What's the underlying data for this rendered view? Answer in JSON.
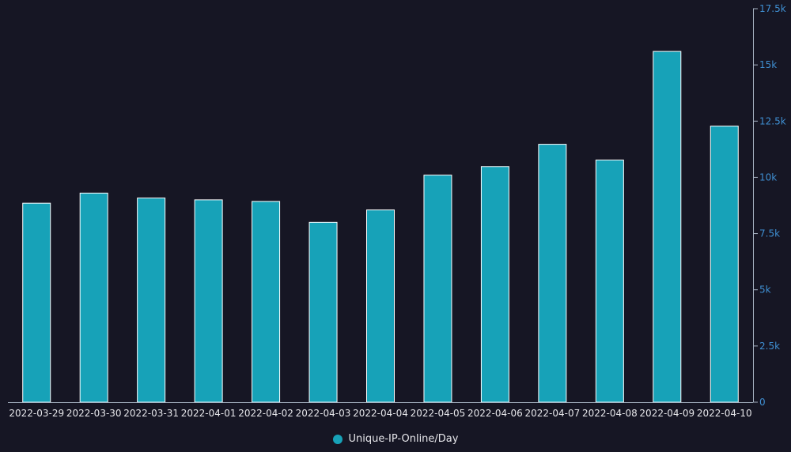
{
  "chart_data": {
    "type": "bar",
    "categories": [
      "2022-03-29",
      "2022-03-30",
      "2022-03-31",
      "2022-04-01",
      "2022-04-02",
      "2022-04-03",
      "2022-04-04",
      "2022-04-05",
      "2022-04-06",
      "2022-04-07",
      "2022-04-08",
      "2022-04-09",
      "2022-04-10"
    ],
    "series": [
      {
        "name": "Unique-IP-Online/Day",
        "values": [
          8850,
          9300,
          9080,
          9000,
          8930,
          8000,
          8550,
          10100,
          10480,
          11470,
          10770,
          15600,
          12280
        ],
        "color": "#17a2b8"
      }
    ],
    "ylim": [
      0,
      17500
    ],
    "yticks": [
      0,
      2500,
      5000,
      7500,
      10000,
      12500,
      15000,
      17500
    ],
    "ytick_labels": [
      "0",
      "2.5k",
      "5k",
      "7.5k",
      "10k",
      "12.5k",
      "15k",
      "17.5k"
    ],
    "y_axis_position": "right",
    "title": "",
    "xlabel": "",
    "ylabel": "",
    "grid": false,
    "legend_position": "bottom-center",
    "colors": {
      "background": "#161624",
      "axis_line": "#a8b4c4",
      "x_tick_text": "#e6e6ea",
      "y_tick_text": "#3f8fd2",
      "bar_stroke": "#ffffff"
    }
  }
}
